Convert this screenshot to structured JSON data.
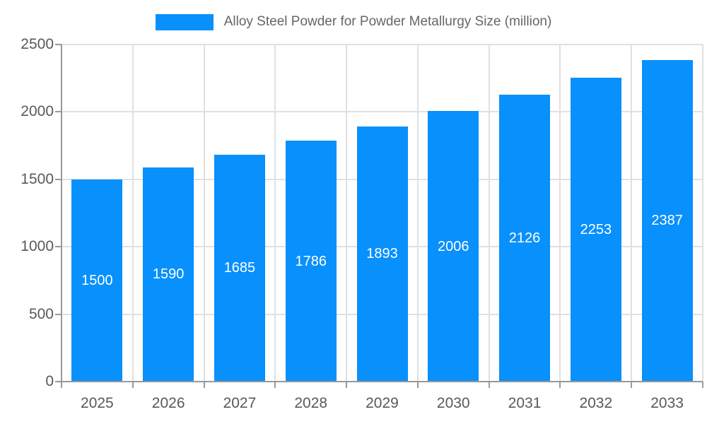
{
  "chart_data": {
    "type": "bar",
    "title": "Alloy Steel Powder for Powder Metallurgy Size (million)",
    "categories": [
      "2025",
      "2026",
      "2027",
      "2028",
      "2029",
      "2030",
      "2031",
      "2032",
      "2033"
    ],
    "values": [
      1500,
      1590,
      1685,
      1786,
      1893,
      2006,
      2126,
      2253,
      2387
    ],
    "xlabel": "",
    "ylabel": "",
    "ylim": [
      0,
      2500
    ],
    "yticks": [
      0,
      500,
      1000,
      1500,
      2000,
      2500
    ],
    "grid": true,
    "legend_position": "top-center",
    "value_labels": "inside-center",
    "colors": {
      "bar": "#0890FC",
      "grid": "#e0e0e0",
      "axis": "#999999",
      "tick_label": "#595959",
      "title": "#666666",
      "value_label": "#ffffff",
      "background": "#ffffff"
    }
  }
}
